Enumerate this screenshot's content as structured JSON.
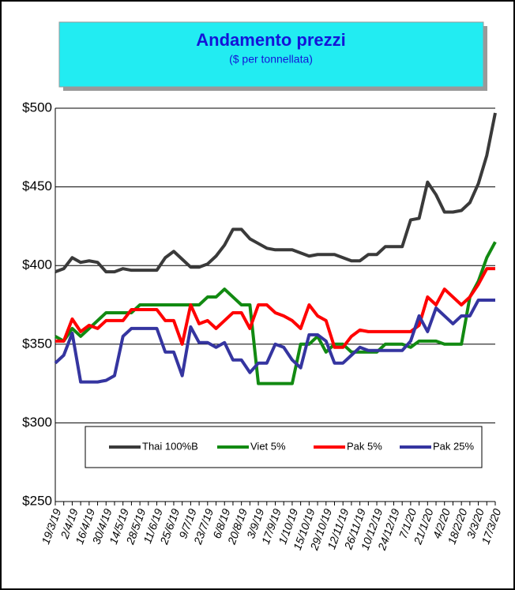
{
  "chart_data": {
    "type": "line",
    "title": "Andamento prezzi",
    "subtitle": "($ per tonnellata)",
    "categories": [
      "19/3/19",
      null,
      "2/4/19",
      null,
      "16/4/19",
      null,
      "30/4/19",
      null,
      "14/5/19",
      null,
      "28/5/19",
      null,
      "11/6/19",
      null,
      "25/6/19",
      null,
      "9/7/19",
      null,
      "23/7/19",
      null,
      "6/8/19",
      null,
      "20/8/19",
      null,
      "3/9/19",
      null,
      "17/9/19",
      null,
      "1/10/19",
      null,
      "15/10/19",
      null,
      "29/10/19",
      null,
      "12/11/19",
      null,
      "26/11/19",
      null,
      "10/12/19",
      null,
      "24/12/19",
      null,
      "7/1/20",
      null,
      "21/1/20",
      null,
      "4/2/20",
      null,
      "18/2/20",
      null,
      "3/3/20",
      null,
      "17/3/20"
    ],
    "series": [
      {
        "name": "Thai 100%B",
        "color": "#3a3a3a",
        "values": [
          396,
          398,
          405,
          402,
          403,
          402,
          396,
          396,
          398,
          397,
          397,
          397,
          397,
          405,
          409,
          404,
          399,
          399,
          401,
          406,
          413,
          423,
          423,
          417,
          414,
          411,
          410,
          410,
          410,
          408,
          406,
          407,
          407,
          407,
          405,
          403,
          403,
          407,
          407,
          412,
          412,
          412,
          429,
          430,
          453,
          445,
          434,
          434,
          435,
          440,
          452,
          470,
          497
        ]
      },
      {
        "name": "Viet 5%",
        "color": "#128a12",
        "values": [
          355,
          352,
          360,
          355,
          360,
          365,
          370,
          370,
          370,
          370,
          375,
          375,
          375,
          375,
          375,
          375,
          375,
          375,
          380,
          380,
          385,
          380,
          375,
          375,
          325,
          325,
          325,
          325,
          325,
          350,
          350,
          355,
          345,
          350,
          350,
          345,
          345,
          345,
          345,
          350,
          350,
          350,
          348,
          352,
          352,
          352,
          350,
          350,
          350,
          380,
          390,
          405,
          415
        ]
      },
      {
        "name": "Pak 5%",
        "color": "#ff0000",
        "values": [
          352,
          352,
          366,
          358,
          362,
          360,
          365,
          365,
          365,
          372,
          372,
          372,
          372,
          365,
          365,
          350,
          375,
          363,
          365,
          360,
          365,
          370,
          370,
          360,
          375,
          375,
          370,
          368,
          365,
          360,
          375,
          368,
          365,
          348,
          348,
          355,
          359,
          358,
          358,
          358,
          358,
          358,
          358,
          362,
          380,
          375,
          385,
          380,
          375,
          380,
          388,
          398,
          398
        ]
      },
      {
        "name": "Pak 25%",
        "color": "#3535a0",
        "values": [
          338,
          343,
          357,
          326,
          326,
          326,
          327,
          330,
          355,
          360,
          360,
          360,
          360,
          345,
          345,
          330,
          361,
          351,
          351,
          348,
          351,
          340,
          340,
          332,
          338,
          338,
          350,
          348,
          340,
          335,
          356,
          356,
          352,
          338,
          338,
          343,
          348,
          346,
          346,
          346,
          346,
          346,
          352,
          368,
          358,
          373,
          368,
          363,
          368,
          368,
          378,
          378,
          378
        ]
      }
    ],
    "ylim": [
      250,
      500
    ],
    "yticks": [
      {
        "value": 250,
        "label": "$250"
      },
      {
        "value": 300,
        "label": "$300"
      },
      {
        "value": 350,
        "label": "$350"
      },
      {
        "value": 400,
        "label": "$400"
      },
      {
        "value": 450,
        "label": "$450"
      },
      {
        "value": 500,
        "label": "$500"
      }
    ],
    "grid": true,
    "legend": "bottom"
  }
}
